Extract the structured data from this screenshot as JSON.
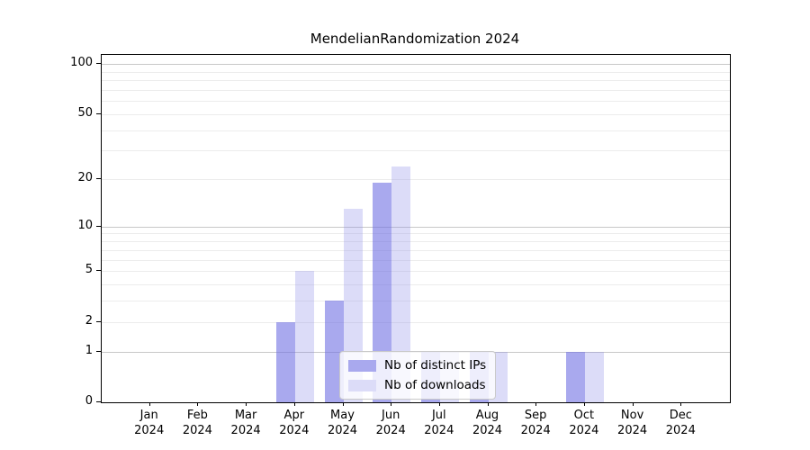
{
  "chart_data": {
    "type": "bar",
    "title": "MendelianRandomization 2024",
    "scale": "log1p",
    "categories": [
      "Jan",
      "Feb",
      "Mar",
      "Apr",
      "May",
      "Jun",
      "Jul",
      "Aug",
      "Sep",
      "Oct",
      "Nov",
      "Dec"
    ],
    "category_year": "2024",
    "series": [
      {
        "name": "Nb of distinct IPs",
        "color": "rgba(112,112,227,0.6)",
        "color_solid": "#a9a9ee",
        "values": [
          0,
          0,
          0,
          2,
          3,
          19,
          1,
          1,
          0,
          1,
          0,
          0
        ]
      },
      {
        "name": "Nb of downloads",
        "color": "rgba(138,138,232,0.3)",
        "color_solid": "#dcdcf8",
        "values": [
          0,
          0,
          0,
          5,
          13,
          24,
          1,
          1,
          0,
          1,
          0,
          0
        ]
      }
    ],
    "y_ticks": [
      0,
      1,
      2,
      5,
      10,
      20,
      50,
      100
    ],
    "gridlines": {
      "major": [
        1,
        10,
        100
      ],
      "minor": [
        2,
        3,
        4,
        5,
        6,
        7,
        8,
        9,
        20,
        30,
        40,
        50,
        60,
        70,
        80,
        90
      ]
    },
    "ylim": [
      0,
      113
    ],
    "xlabel": "",
    "ylabel": "",
    "legend_position": "lower-center"
  },
  "colors": {
    "major_grid": "#c8c8c8",
    "minor_grid": "#ececec",
    "axis": "#000000",
    "background": "#ffffff"
  }
}
